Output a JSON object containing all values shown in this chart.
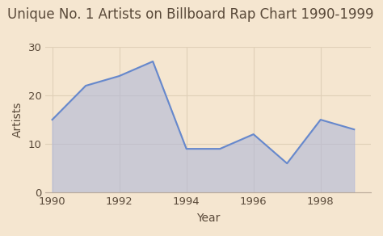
{
  "title": "Unique No. 1 Artists on Billboard Rap Chart 1990-1999",
  "xlabel": "Year",
  "ylabel": "Artists",
  "x": [
    1990,
    1991,
    1992,
    1993,
    1994,
    1995,
    1996,
    1997,
    1998,
    1999
  ],
  "y": [
    15,
    22,
    24,
    27,
    9,
    9,
    12,
    6,
    15,
    13
  ],
  "ylim": [
    0,
    30
  ],
  "xlim": [
    1989.8,
    1999.5
  ],
  "line_color": "#6688cc",
  "fill_color": "#b0b8d8",
  "fill_alpha": 0.6,
  "background_color": "#f5e6d0",
  "grid_color": "#e0d0b8",
  "title_fontsize": 12,
  "label_fontsize": 10,
  "tick_fontsize": 9.5,
  "text_color": "#5a4a3a",
  "xticks": [
    1990,
    1992,
    1994,
    1996,
    1998
  ],
  "yticks": [
    0,
    10,
    20,
    30
  ]
}
